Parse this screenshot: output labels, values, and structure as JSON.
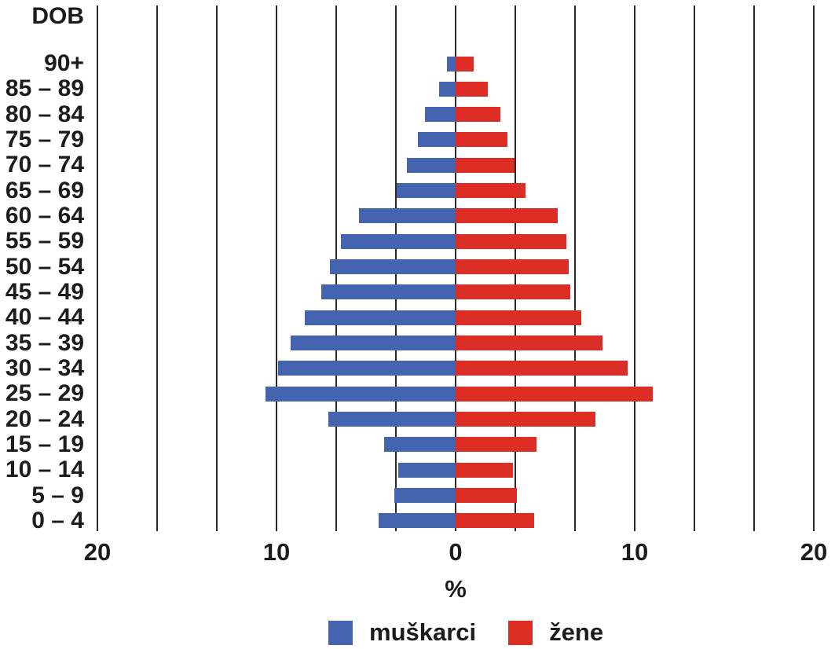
{
  "legend": {
    "male": "muškarci",
    "female": "žene"
  },
  "colors": {
    "male": "#4464B0",
    "female": "#DD2E26",
    "grid": "#2a2a2a",
    "text": "#1c1c1c",
    "background": "#ffffff"
  },
  "chart_data": {
    "type": "bar",
    "subtype": "population-pyramid",
    "title": "",
    "ylabel": "DOB",
    "xlabel": "%",
    "categories": [
      "90+",
      "85 – 89",
      "80 – 84",
      "75 – 79",
      "70 – 74",
      "65 – 69",
      "60 – 64",
      "55 – 59",
      "50 – 54",
      "45 – 49",
      "40 – 44",
      "35 – 39",
      "30 – 34",
      "25 – 29",
      "20 – 24",
      "15 – 19",
      "10 – 14",
      "5 – 9",
      "0 – 4"
    ],
    "series": [
      {
        "name": "muškarci",
        "side": "left",
        "color": "#4464B0",
        "values": [
          0.5,
          0.9,
          1.7,
          2.1,
          2.7,
          3.3,
          5.4,
          6.4,
          7.0,
          7.5,
          8.4,
          9.2,
          9.9,
          10.6,
          7.1,
          4.0,
          3.2,
          3.4,
          4.3
        ]
      },
      {
        "name": "žene",
        "side": "right",
        "color": "#DD2E26",
        "values": [
          1.0,
          1.8,
          2.5,
          2.9,
          3.3,
          3.9,
          5.7,
          6.2,
          6.3,
          6.4,
          7.0,
          8.2,
          9.6,
          11.0,
          7.8,
          4.5,
          3.2,
          3.4,
          4.4
        ]
      }
    ],
    "x_tick_labels": [
      "20",
      "10",
      "0",
      "10",
      "20"
    ],
    "xlim": [
      -20,
      20
    ],
    "gridlines": "vertical, every 10/3 percent, 13 lines",
    "legend_position": "bottom"
  }
}
